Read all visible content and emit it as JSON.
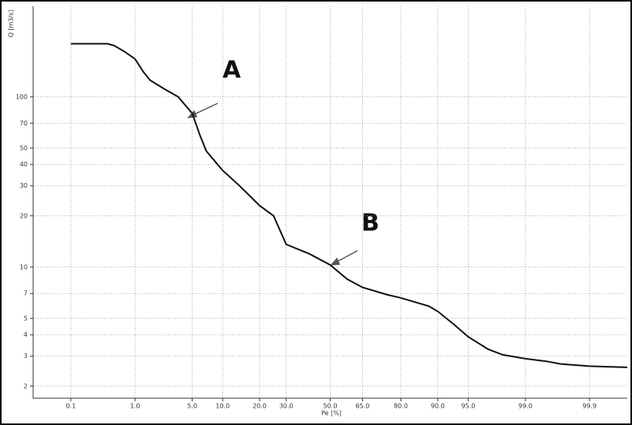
{
  "chart_data": {
    "type": "line",
    "xlabel": "Pe [%]",
    "ylabel": "Q [m3/s]",
    "annotations": [
      "A",
      "B"
    ],
    "x_scale": "probability",
    "y_scale": "log",
    "grid": true,
    "color": "#111111",
    "x": [
      0.1,
      0.4,
      0.5,
      0.7,
      1.0,
      1.3,
      1.6,
      2.5,
      3.5,
      5.0,
      6.0,
      7.0,
      9.0,
      10.0,
      14.0,
      20.0,
      25.0,
      30.0,
      40.0,
      50.0,
      58.0,
      65.0,
      75.0,
      80.0,
      88.0,
      90.0,
      93.0,
      95.0,
      97.0,
      98.0,
      99.0,
      99.5,
      99.7,
      99.9,
      99.98
    ],
    "values": [
      205,
      205,
      200,
      185,
      167,
      140,
      125,
      110,
      100,
      80,
      60,
      48,
      40,
      37,
      30,
      23,
      20,
      13.6,
      12,
      10.3,
      8.5,
      7.6,
      6.9,
      6.6,
      5.9,
      5.5,
      4.6,
      3.9,
      3.3,
      3.06,
      2.9,
      2.8,
      2.7,
      2.62,
      2.58
    ],
    "xlim": [
      0.02,
      99.98
    ],
    "ylim": [
      1.7,
      340
    ],
    "xticks": [
      {
        "value": 0.1,
        "label": "0.1"
      },
      {
        "value": 1,
        "label": "1.0"
      },
      {
        "value": 5,
        "label": "5.0"
      },
      {
        "value": 10,
        "label": "10.0"
      },
      {
        "value": 20,
        "label": "20.0"
      },
      {
        "value": 30,
        "label": "30.0"
      },
      {
        "value": 50,
        "label": "50.0"
      },
      {
        "value": 65,
        "label": "65.0"
      },
      {
        "value": 80,
        "label": "80.0"
      },
      {
        "value": 90,
        "label": "90.0"
      },
      {
        "value": 95,
        "label": "95.0"
      },
      {
        "value": 99,
        "label": "99.0"
      },
      {
        "value": 99.9,
        "label": "99.9"
      }
    ],
    "yticks": [
      2,
      3,
      4,
      5,
      7,
      10,
      20,
      30,
      40,
      50,
      70,
      100
    ]
  }
}
